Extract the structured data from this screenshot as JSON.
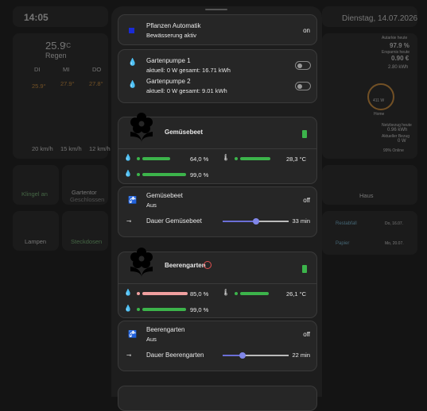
{
  "background": {
    "time": "14:05",
    "date": "Dienstag, 14.07.2026",
    "weather": {
      "temp": "25.9",
      "unit": "°C",
      "condition": "Regen",
      "days": [
        "DI",
        "MI",
        "DO"
      ],
      "temps": [
        "25.9°",
        "27.9°",
        "27.8°"
      ],
      "winds": [
        "20 km/h",
        "15 km/h",
        "12 km/h"
      ]
    },
    "tiles": [
      {
        "label": "Klingel an"
      },
      {
        "label": "Gartentor",
        "sub": "Geschlossen"
      },
      {
        "label": "Lampen"
      },
      {
        "label": "Steckdosen"
      },
      {
        "label": "Haus"
      }
    ],
    "energy": {
      "autarky_label": "Autarkie heute",
      "autarky": "97.9 %",
      "self_label": "Ersparnis heute",
      "self": "0.90 €",
      "kwh": "2.80 kWh",
      "home_power": "411 W",
      "home": "Home",
      "grid_label": "Netzbezug heute",
      "grid": "0.96 kWh",
      "current_label": "Aktueller Bezug",
      "current": "0 W",
      "online": "99% Online"
    },
    "waste": [
      {
        "name": "Restabfall",
        "date": "Do, 16.07."
      },
      {
        "name": "Papier",
        "date": "Mo, 20.07."
      }
    ]
  },
  "panel": {
    "automation": {
      "title": "Pflanzen Automatik",
      "status": "Bewässerung aktiv",
      "state": "on"
    },
    "pumps": [
      {
        "name": "Gartenpumpe 1",
        "info": "aktuell: 0 W gesamt: 16.71 kWh"
      },
      {
        "name": "Gartenpumpe 2",
        "info": "aktuell: 0 W gesamt: 9.01 kWh"
      }
    ],
    "beds": [
      {
        "name": "Gemüsebeet",
        "moisture": "64,0 %",
        "temperature": "28,3 °C",
        "fill": "99,0 %",
        "valve": "Gemüsebeet",
        "valve_state": "Aus",
        "switch": "off",
        "duration_label": "Dauer Gemüsebeet",
        "duration": "33 min"
      },
      {
        "name": "Beerengarten",
        "moisture": "85,0 %",
        "temperature": "26,1 °C",
        "fill": "99,0 %",
        "valve": "Beerengarten",
        "valve_state": "Aus",
        "switch": "off",
        "duration_label": "Dauer Beerengarten",
        "duration": "22 min"
      }
    ]
  }
}
